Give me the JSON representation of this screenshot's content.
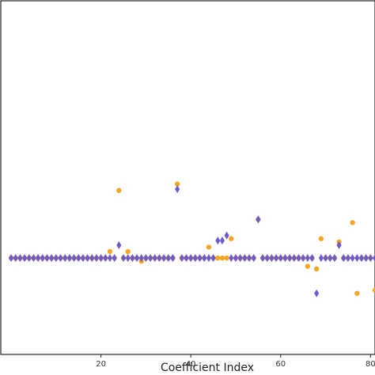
{
  "chart_data": {
    "type": "scatter",
    "title": "",
    "xlabel": "Coefficient Index",
    "ylabel": "",
    "xlim": [
      -2.3,
      81
    ],
    "ylim": [
      -1.5,
      4.0
    ],
    "x_ticks": [
      20,
      40,
      60,
      80
    ],
    "x_tick_labels": [
      "20",
      "40",
      "60",
      "80"
    ],
    "grid": false,
    "legend": "none",
    "series": [
      {
        "marker": "circle",
        "color": "#f5a623",
        "points": [
          [
            0,
            0
          ],
          [
            1,
            0
          ],
          [
            2,
            0
          ],
          [
            3,
            0
          ],
          [
            4,
            0
          ],
          [
            5,
            0
          ],
          [
            6,
            0
          ],
          [
            7,
            0
          ],
          [
            8,
            0
          ],
          [
            9,
            0
          ],
          [
            10,
            0
          ],
          [
            11,
            0
          ],
          [
            12,
            0
          ],
          [
            13,
            0
          ],
          [
            14,
            0
          ],
          [
            15,
            0
          ],
          [
            16,
            0
          ],
          [
            17,
            0
          ],
          [
            18,
            0
          ],
          [
            19,
            0
          ],
          [
            20,
            0
          ],
          [
            21,
            0
          ],
          [
            22,
            0.1
          ],
          [
            23,
            0
          ],
          [
            24,
            1.05
          ],
          [
            25,
            0
          ],
          [
            26,
            0.1
          ],
          [
            27,
            0
          ],
          [
            28,
            0
          ],
          [
            29,
            -0.05
          ],
          [
            30,
            0
          ],
          [
            31,
            0
          ],
          [
            32,
            0
          ],
          [
            33,
            0
          ],
          [
            34,
            0
          ],
          [
            35,
            0
          ],
          [
            36,
            0
          ],
          [
            37,
            1.15
          ],
          [
            38,
            0
          ],
          [
            39,
            0
          ],
          [
            40,
            0
          ],
          [
            41,
            0
          ],
          [
            42,
            0
          ],
          [
            43,
            0
          ],
          [
            44,
            0.17
          ],
          [
            45,
            0
          ],
          [
            46,
            0
          ],
          [
            47,
            0
          ],
          [
            48,
            0
          ],
          [
            49,
            0.3
          ],
          [
            50,
            0
          ],
          [
            51,
            0
          ],
          [
            52,
            0
          ],
          [
            53,
            0
          ],
          [
            54,
            0
          ],
          [
            55,
            0.6
          ],
          [
            56,
            0
          ],
          [
            57,
            0
          ],
          [
            58,
            0
          ],
          [
            59,
            0
          ],
          [
            60,
            0
          ],
          [
            61,
            0
          ],
          [
            62,
            0
          ],
          [
            63,
            0
          ],
          [
            64,
            0
          ],
          [
            65,
            0
          ],
          [
            66,
            -0.13
          ],
          [
            67,
            0
          ],
          [
            68,
            -0.17
          ],
          [
            69,
            0.3
          ],
          [
            70,
            0
          ],
          [
            71,
            0
          ],
          [
            72,
            0
          ],
          [
            73,
            0.25
          ],
          [
            74,
            0
          ],
          [
            75,
            0
          ],
          [
            76,
            0.55
          ],
          [
            77,
            -0.55
          ],
          [
            78,
            0
          ],
          [
            79,
            0
          ],
          [
            80,
            0
          ],
          [
            81,
            -0.5
          ]
        ]
      },
      {
        "marker": "diamond",
        "color": "#6a5acd",
        "points": [
          [
            0,
            0
          ],
          [
            1,
            0
          ],
          [
            2,
            0
          ],
          [
            3,
            0
          ],
          [
            4,
            0
          ],
          [
            5,
            0
          ],
          [
            6,
            0
          ],
          [
            7,
            0
          ],
          [
            8,
            0
          ],
          [
            9,
            0
          ],
          [
            10,
            0
          ],
          [
            11,
            0
          ],
          [
            12,
            0
          ],
          [
            13,
            0
          ],
          [
            14,
            0
          ],
          [
            15,
            0
          ],
          [
            16,
            0
          ],
          [
            17,
            0
          ],
          [
            18,
            0
          ],
          [
            19,
            0
          ],
          [
            20,
            0
          ],
          [
            21,
            0
          ],
          [
            22,
            0
          ],
          [
            23,
            0
          ],
          [
            24,
            0.2
          ],
          [
            25,
            0
          ],
          [
            26,
            0
          ],
          [
            27,
            0
          ],
          [
            28,
            0
          ],
          [
            29,
            0
          ],
          [
            30,
            0
          ],
          [
            31,
            0
          ],
          [
            32,
            0
          ],
          [
            33,
            0
          ],
          [
            34,
            0
          ],
          [
            35,
            0
          ],
          [
            36,
            0
          ],
          [
            37,
            1.07
          ],
          [
            38,
            0
          ],
          [
            39,
            0
          ],
          [
            40,
            0
          ],
          [
            41,
            0
          ],
          [
            42,
            0
          ],
          [
            43,
            0
          ],
          [
            44,
            0
          ],
          [
            45,
            0
          ],
          [
            46,
            0.27
          ],
          [
            47,
            0.27
          ],
          [
            48,
            0.35
          ],
          [
            49,
            0
          ],
          [
            50,
            0
          ],
          [
            51,
            0
          ],
          [
            52,
            0
          ],
          [
            53,
            0
          ],
          [
            54,
            0
          ],
          [
            55,
            0.6
          ],
          [
            56,
            0
          ],
          [
            57,
            0
          ],
          [
            58,
            0
          ],
          [
            59,
            0
          ],
          [
            60,
            0
          ],
          [
            61,
            0
          ],
          [
            62,
            0
          ],
          [
            63,
            0
          ],
          [
            64,
            0
          ],
          [
            65,
            0
          ],
          [
            66,
            0
          ],
          [
            67,
            0
          ],
          [
            68,
            -0.55
          ],
          [
            69,
            0
          ],
          [
            70,
            0
          ],
          [
            71,
            0
          ],
          [
            72,
            0
          ],
          [
            73,
            0.2
          ],
          [
            74,
            0
          ],
          [
            75,
            0
          ],
          [
            76,
            0
          ],
          [
            77,
            0
          ],
          [
            78,
            0
          ],
          [
            79,
            0
          ],
          [
            80,
            0
          ],
          [
            81,
            0
          ]
        ]
      }
    ]
  }
}
